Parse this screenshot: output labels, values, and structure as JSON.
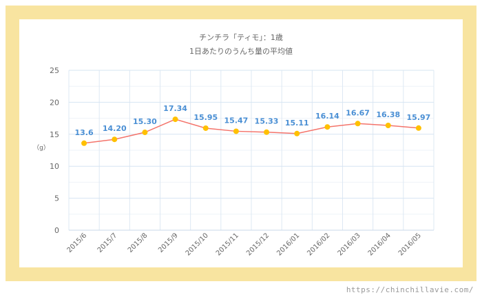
{
  "chart_data": {
    "type": "line",
    "title": "チンチラ「ティモ」：1歳",
    "subtitle": "1日あたりのうんち量の平均値",
    "ylabel": "（g）",
    "xlabel": "",
    "categories": [
      "2015/6",
      "2015/7",
      "2015/8",
      "2015/9",
      "2015/10",
      "2015/11",
      "2015/12",
      "2016/01",
      "2016/02",
      "2016/03",
      "2016/04",
      "2016/05"
    ],
    "values": [
      13.6,
      14.2,
      15.3,
      17.34,
      15.95,
      15.47,
      15.33,
      15.11,
      16.14,
      16.67,
      16.38,
      15.97
    ],
    "data_labels": [
      "13.6",
      "14.20",
      "15.30",
      "17.34",
      "15.95",
      "15.47",
      "15.33",
      "15.11",
      "16.14",
      "16.67",
      "16.38",
      "15.97"
    ],
    "ylim": [
      0,
      25
    ],
    "yticks": [
      "0",
      "5",
      "10",
      "15",
      "20",
      "25"
    ],
    "grid": true,
    "colors": {
      "line": "#f4736a",
      "marker": "#ffc000",
      "label": "#4a8fd4",
      "frame": "#f8e4a0"
    }
  },
  "watermark": "https://chinchillavie.com/"
}
